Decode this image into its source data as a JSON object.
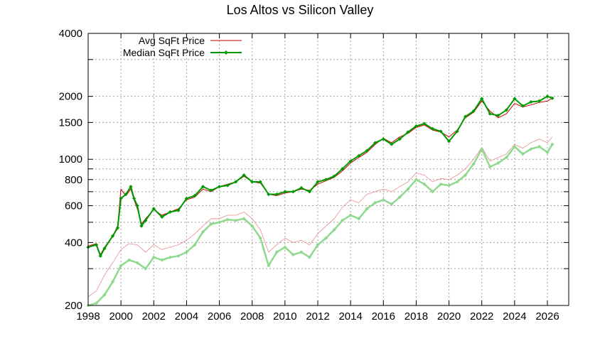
{
  "chart_data": {
    "type": "line",
    "title": "Los Altos vs Silicon Valley",
    "xlabel": "",
    "ylabel": "",
    "y_scale": "log",
    "ylim": [
      200,
      4000
    ],
    "xlim": [
      1998,
      2027.3
    ],
    "x_ticks": [
      1998,
      2000,
      2002,
      2004,
      2006,
      2008,
      2010,
      2012,
      2014,
      2016,
      2018,
      2020,
      2022,
      2024,
      2026
    ],
    "y_ticks": [
      200,
      400,
      600,
      800,
      1000,
      1500,
      2000,
      4000
    ],
    "y_minor_gridlines": [
      300,
      500,
      700,
      900,
      3000
    ],
    "grid": true,
    "legend": "top-left",
    "colors": {
      "los_altos_avg": "#cc0000",
      "los_altos_median": "#009900",
      "sv_avg": "#e88c8c",
      "sv_median": "#8fd98f"
    },
    "series": [
      {
        "name": "Avg SqFt Price",
        "role": "los_altos_avg",
        "x": [
          1998,
          1998.5,
          1998.75,
          1999,
          1999.5,
          1999.8,
          2000,
          2000.3,
          2000.6,
          2000.8,
          2001,
          2001.25,
          2001.5,
          2002,
          2002.5,
          2003,
          2003.5,
          2004,
          2004.5,
          2005,
          2005.5,
          2006,
          2006.5,
          2007,
          2007.5,
          2008,
          2008.5,
          2009,
          2009.5,
          2010,
          2010.5,
          2011,
          2011.5,
          2012,
          2012.5,
          2013,
          2013.5,
          2014,
          2014.5,
          2015,
          2015.5,
          2016,
          2016.5,
          2017,
          2017.5,
          2018,
          2018.5,
          2019,
          2019.5,
          2020,
          2020.5,
          2021,
          2021.5,
          2022,
          2022.5,
          2023,
          2023.5,
          2024,
          2024.5,
          2025,
          2025.5,
          2026,
          2026.3
        ],
        "values": [
          385,
          395,
          350,
          380,
          430,
          480,
          720,
          670,
          720,
          640,
          580,
          490,
          520,
          575,
          540,
          560,
          580,
          640,
          660,
          720,
          700,
          740,
          760,
          780,
          830,
          780,
          770,
          680,
          670,
          690,
          700,
          720,
          710,
          760,
          790,
          820,
          880,
          960,
          1020,
          1080,
          1180,
          1260,
          1200,
          1280,
          1330,
          1420,
          1460,
          1380,
          1350,
          1280,
          1380,
          1580,
          1680,
          1900,
          1700,
          1580,
          1650,
          1850,
          1780,
          1820,
          1870,
          1900,
          1960
        ]
      },
      {
        "name": "Median SqFt Price",
        "role": "los_altos_median",
        "x": [
          1998,
          1998.5,
          1998.75,
          1999,
          1999.5,
          1999.8,
          2000,
          2000.3,
          2000.6,
          2000.8,
          2001,
          2001.25,
          2001.5,
          2002,
          2002.5,
          2003,
          2003.5,
          2004,
          2004.5,
          2005,
          2005.5,
          2006,
          2006.5,
          2007,
          2007.5,
          2008,
          2008.5,
          2009,
          2009.5,
          2010,
          2010.5,
          2011,
          2011.5,
          2012,
          2012.5,
          2013,
          2013.5,
          2014,
          2014.5,
          2015,
          2015.5,
          2016,
          2016.5,
          2017,
          2017.5,
          2018,
          2018.5,
          2019,
          2019.5,
          2020,
          2020.5,
          2021,
          2021.5,
          2022,
          2022.5,
          2023,
          2023.5,
          2024,
          2024.5,
          2025,
          2025.5,
          2026,
          2026.3
        ],
        "values": [
          380,
          390,
          345,
          375,
          430,
          470,
          650,
          680,
          740,
          650,
          600,
          480,
          510,
          580,
          530,
          560,
          570,
          650,
          670,
          740,
          710,
          740,
          750,
          780,
          840,
          780,
          780,
          680,
          680,
          700,
          700,
          730,
          700,
          780,
          800,
          830,
          900,
          980,
          1040,
          1100,
          1200,
          1250,
          1180,
          1250,
          1350,
          1440,
          1480,
          1400,
          1360,
          1220,
          1360,
          1600,
          1700,
          1950,
          1650,
          1620,
          1720,
          1950,
          1800,
          1880,
          1900,
          2000,
          1960
        ]
      },
      {
        "role": "sv_avg",
        "x": [
          1998,
          1998.5,
          1999,
          1999.5,
          2000,
          2000.5,
          2001,
          2001.5,
          2002,
          2002.5,
          2003,
          2003.5,
          2004,
          2004.5,
          2005,
          2005.5,
          2006,
          2006.5,
          2007,
          2007.5,
          2008,
          2008.5,
          2009,
          2009.5,
          2010,
          2010.5,
          2011,
          2011.5,
          2012,
          2012.5,
          2013,
          2013.5,
          2014,
          2014.5,
          2015,
          2015.5,
          2016,
          2016.5,
          2017,
          2017.5,
          2018,
          2018.5,
          2019,
          2019.5,
          2020,
          2020.5,
          2021,
          2021.5,
          2022,
          2022.5,
          2023,
          2023.5,
          2024,
          2024.5,
          2025,
          2025.5,
          2026,
          2026.3
        ],
        "values": [
          220,
          235,
          280,
          320,
          370,
          395,
          390,
          360,
          390,
          370,
          380,
          390,
          410,
          440,
          480,
          520,
          520,
          540,
          540,
          560,
          520,
          460,
          360,
          390,
          420,
          400,
          410,
          390,
          440,
          480,
          520,
          590,
          640,
          620,
          680,
          700,
          720,
          700,
          740,
          780,
          860,
          840,
          780,
          810,
          800,
          840,
          900,
          1000,
          1140,
          980,
          1020,
          1060,
          1180,
          1130,
          1200,
          1250,
          1200,
          1280
        ]
      },
      {
        "role": "sv_median",
        "x": [
          1998,
          1998.5,
          1999,
          1999.5,
          2000,
          2000.5,
          2001,
          2001.5,
          2002,
          2002.5,
          2003,
          2003.5,
          2004,
          2004.5,
          2005,
          2005.5,
          2006,
          2006.5,
          2007,
          2007.5,
          2008,
          2008.5,
          2009,
          2009.5,
          2010,
          2010.5,
          2011,
          2011.5,
          2012,
          2012.5,
          2013,
          2013.5,
          2014,
          2014.5,
          2015,
          2015.5,
          2016,
          2016.5,
          2017,
          2017.5,
          2018,
          2018.5,
          2019,
          2019.5,
          2020,
          2020.5,
          2021,
          2021.5,
          2022,
          2022.5,
          2023,
          2023.5,
          2024,
          2024.5,
          2025,
          2025.5,
          2026,
          2026.3
        ],
        "values": [
          200,
          205,
          225,
          260,
          310,
          330,
          320,
          300,
          340,
          330,
          340,
          345,
          360,
          390,
          450,
          490,
          500,
          515,
          510,
          520,
          480,
          420,
          310,
          360,
          380,
          350,
          360,
          340,
          390,
          420,
          460,
          510,
          540,
          520,
          580,
          620,
          640,
          610,
          660,
          720,
          800,
          760,
          700,
          760,
          750,
          780,
          840,
          950,
          1120,
          920,
          960,
          1020,
          1150,
          1060,
          1120,
          1150,
          1080,
          1180
        ]
      }
    ]
  }
}
